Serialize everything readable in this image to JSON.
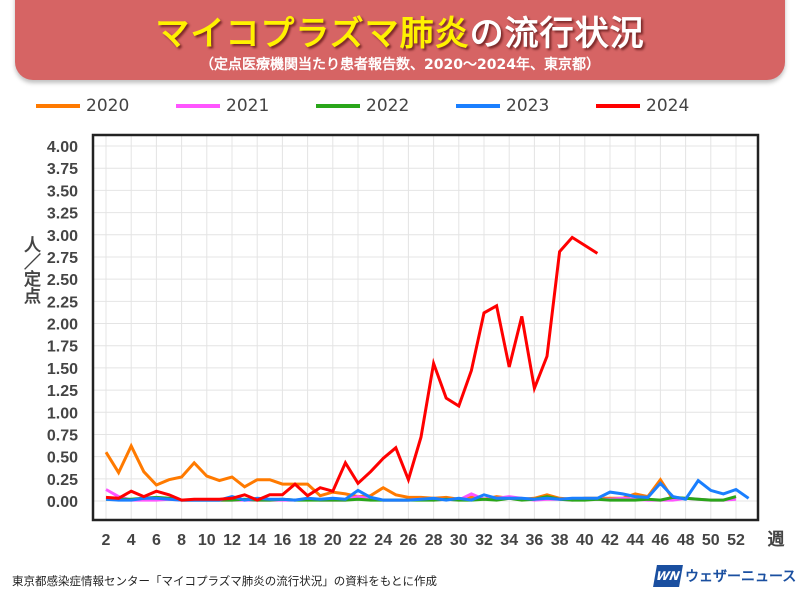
{
  "header": {
    "title_main": "マイコプラズマ肺炎",
    "title_rest": "の流行状況",
    "subtitle": "（定点医療機関当たり患者報告数、2020～2024年、東京都）"
  },
  "footer": {
    "source": "東京都感染症情報センター「マイコプラズマ肺炎の流行状況」の資料をもとに作成",
    "logo_mark": "WN",
    "logo_text": "ウェザーニュース"
  },
  "chart_data": {
    "type": "line",
    "title": "マイコプラズマ肺炎の流行状況",
    "xlabel": "週",
    "ylabel": "人／定点",
    "ylim": [
      0,
      4
    ],
    "xlim": [
      2,
      52
    ],
    "grid": true,
    "legend_placement": "top",
    "x_ticks": [
      "2",
      "4",
      "6",
      "8",
      "10",
      "12",
      "14",
      "16",
      "18",
      "20",
      "22",
      "24",
      "26",
      "28",
      "30",
      "32",
      "34",
      "36",
      "38",
      "40",
      "42",
      "44",
      "46",
      "48",
      "50",
      "52"
    ],
    "y_ticks": [
      "0.00",
      "0.25",
      "0.50",
      "0.75",
      "1.00",
      "1.25",
      "1.50",
      "1.75",
      "2.00",
      "2.25",
      "2.50",
      "2.75",
      "3.00",
      "3.25",
      "3.50",
      "3.75",
      "4.00"
    ],
    "x_start_week": 2,
    "series": [
      {
        "name": "2020",
        "color": "#ff7a00",
        "values": [
          0.55,
          0.32,
          0.62,
          0.33,
          0.18,
          0.24,
          0.27,
          0.43,
          0.28,
          0.23,
          0.27,
          0.16,
          0.24,
          0.24,
          0.19,
          0.19,
          0.19,
          0.06,
          0.1,
          0.08,
          0.05,
          0.06,
          0.15,
          0.07,
          0.04,
          0.04,
          0.03,
          0.04,
          0.02,
          0.04,
          0.02,
          0.05,
          0.03,
          0.02,
          0.03,
          0.07,
          0.03,
          0.02,
          0.03,
          0.03,
          0.03,
          0.03,
          0.08,
          0.05,
          0.24,
          0.02
        ]
      },
      {
        "name": "2021",
        "color": "#ff55ff",
        "values": [
          0.13,
          0.05,
          0.01,
          0.01,
          0.01,
          0.02,
          0.01,
          0.01,
          0.01,
          0.01,
          0.01,
          0.01,
          0.01,
          0.01,
          0.01,
          0.01,
          0.02,
          0.01,
          0.01,
          0.01,
          0.05,
          0.02,
          0.01,
          0.01,
          0.01,
          0.02,
          0.01,
          0.02,
          0.01,
          0.08,
          0.02,
          0.03,
          0.05,
          0.03,
          0.01,
          0.02,
          0.02,
          0.01,
          0.02,
          0.02,
          0.02,
          0.03,
          0.02,
          0.01,
          0.01,
          0.01,
          0.03,
          0.02,
          0.01,
          0.01,
          0.02
        ]
      },
      {
        "name": "2022",
        "color": "#2aa61a",
        "values": [
          0.02,
          0.02,
          0.02,
          0.03,
          0.04,
          0.03,
          0.01,
          0.01,
          0.01,
          0.01,
          0.01,
          0.02,
          0.01,
          0.01,
          0.02,
          0.01,
          0.01,
          0.01,
          0.01,
          0.01,
          0.02,
          0.01,
          0.01,
          0.01,
          0.01,
          0.01,
          0.01,
          0.02,
          0.01,
          0.01,
          0.02,
          0.01,
          0.03,
          0.01,
          0.02,
          0.05,
          0.02,
          0.01,
          0.01,
          0.02,
          0.01,
          0.01,
          0.01,
          0.02,
          0.01,
          0.04,
          0.03,
          0.02,
          0.01,
          0.01,
          0.05
        ]
      },
      {
        "name": "2023",
        "color": "#1a7fff",
        "values": [
          0.02,
          0.01,
          0.01,
          0.03,
          0.03,
          0.02,
          0.01,
          0.01,
          0.01,
          0.01,
          0.05,
          0.01,
          0.03,
          0.02,
          0.02,
          0.01,
          0.03,
          0.02,
          0.03,
          0.02,
          0.12,
          0.04,
          0.01,
          0.01,
          0.01,
          0.02,
          0.03,
          0.01,
          0.03,
          0.01,
          0.07,
          0.03,
          0.03,
          0.03,
          0.02,
          0.03,
          0.02,
          0.03,
          0.03,
          0.03,
          0.1,
          0.08,
          0.05,
          0.04,
          0.2,
          0.05,
          0.02,
          0.23,
          0.12,
          0.08,
          0.13,
          0.03
        ]
      },
      {
        "name": "2024",
        "color": "#ff0000",
        "values": [
          0.04,
          0.03,
          0.11,
          0.05,
          0.11,
          0.07,
          0.01,
          0.02,
          0.02,
          0.02,
          0.03,
          0.07,
          0.01,
          0.07,
          0.07,
          0.19,
          0.06,
          0.15,
          0.11,
          0.43,
          0.2,
          0.33,
          0.48,
          0.6,
          0.24,
          0.72,
          1.55,
          1.16,
          1.07,
          1.47,
          2.12,
          2.2,
          1.51,
          2.08,
          1.27,
          1.63,
          2.81,
          2.97,
          2.88,
          2.79
        ]
      }
    ]
  }
}
